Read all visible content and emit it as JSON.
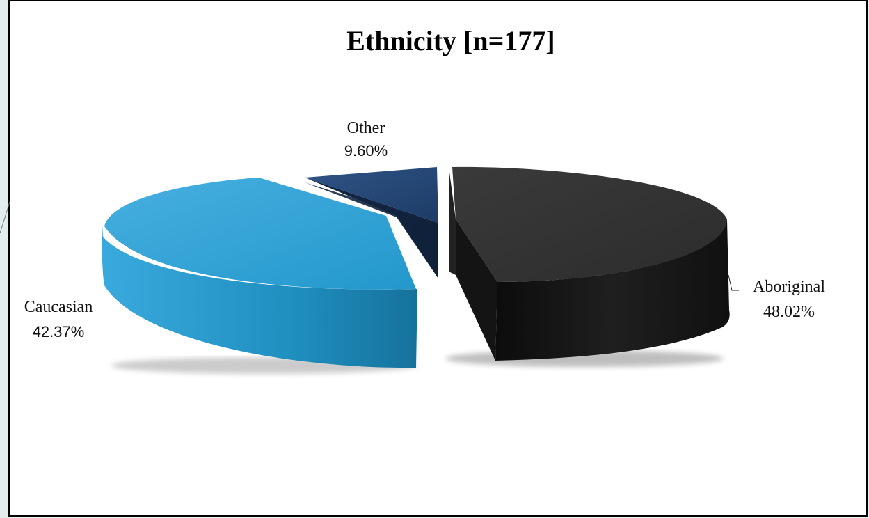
{
  "chart_data": {
    "type": "pie",
    "title": "Ethnicity [n=177]",
    "categories": [
      "Aboriginal",
      "Caucasian",
      "Other"
    ],
    "values": [
      48.02,
      42.37,
      9.6
    ],
    "value_labels": [
      "48.02%",
      "42.37%",
      "9.60%"
    ],
    "colors": [
      "#2a2a2a",
      "#2a9fd4",
      "#1e3d66"
    ],
    "style": "3d-exploded"
  }
}
